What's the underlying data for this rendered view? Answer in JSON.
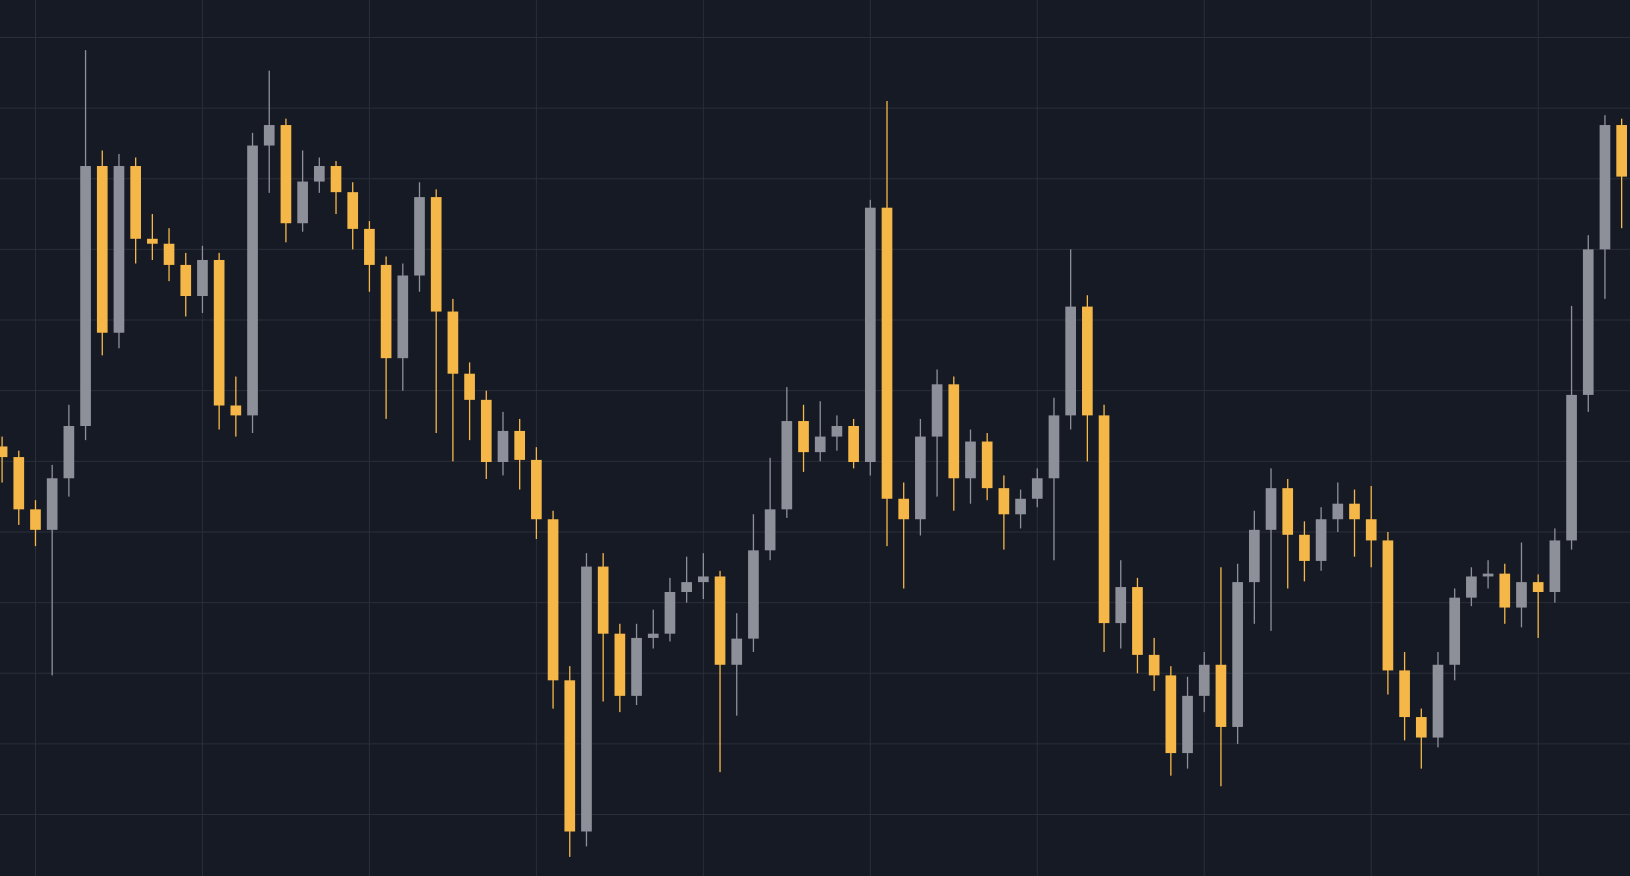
{
  "chart_data": {
    "type": "candlestick",
    "x": [
      0,
      1,
      2,
      3,
      4,
      5,
      6,
      7,
      8,
      9,
      10,
      11,
      12,
      13,
      14,
      15,
      16,
      17,
      18,
      19,
      20,
      21,
      22,
      23,
      24,
      25,
      26,
      27,
      28,
      29,
      30,
      31,
      32,
      33,
      34,
      35,
      36,
      37,
      38,
      39,
      40,
      41,
      42,
      43,
      44,
      45,
      46,
      47,
      48,
      49,
      50,
      51,
      52,
      53,
      54,
      55,
      56,
      57,
      58,
      59,
      60,
      61,
      62,
      63,
      64,
      65,
      66,
      67,
      68,
      69,
      70,
      71,
      72,
      73,
      74,
      75,
      76,
      77,
      78,
      79,
      80,
      81,
      82,
      83,
      84,
      85,
      86,
      87,
      88,
      89,
      90,
      91,
      92,
      93,
      94,
      95,
      96,
      97
    ],
    "open": [
      62.1,
      60.6,
      53.2,
      50.3,
      57.6,
      65.0,
      101.8,
      78.2,
      101.8,
      91.5,
      90.8,
      87.8,
      83.4,
      88.5,
      67.9,
      66.5,
      104.7,
      107.6,
      93.7,
      99.6,
      101.8,
      98.1,
      92.9,
      87.8,
      74.6,
      86.3,
      97.4,
      81.2,
      72.4,
      68.7,
      59.9,
      64.3,
      60.2,
      51.8,
      29.0,
      7.6,
      45.1,
      35.6,
      26.8,
      35.0,
      35.6,
      41.5,
      42.9,
      43.7,
      31.2,
      34.9,
      47.4,
      53.2,
      65.7,
      61.3,
      63.5,
      65.0,
      59.9,
      95.9,
      54.7,
      51.8,
      63.5,
      70.9,
      57.6,
      62.8,
      56.2,
      52.5,
      54.7,
      57.6,
      66.5,
      81.9,
      66.5,
      37.1,
      42.2,
      32.6,
      29.7,
      18.7,
      26.8,
      31.2,
      22.4,
      42.9,
      50.3,
      56.2,
      49.6,
      45.9,
      51.8,
      54.0,
      51.8,
      48.8,
      30.4,
      23.8,
      20.9,
      31.2,
      40.7,
      43.7,
      44.1,
      39.3,
      42.9,
      41.5,
      48.8,
      69.4,
      90.0,
      107.6
    ],
    "high": [
      63.5,
      61.5,
      54.5,
      59.5,
      68.0,
      118.2,
      104.0,
      103.5,
      103.0,
      95.0,
      93.0,
      89.5,
      90.5,
      89.5,
      72.0,
      106.5,
      115.3,
      108.5,
      104.0,
      103.0,
      102.5,
      99.5,
      94.0,
      89.0,
      88.0,
      99.5,
      98.5,
      83.0,
      74.0,
      70.0,
      67.0,
      66.0,
      62.0,
      53.0,
      31.0,
      47.0,
      47.0,
      37.0,
      37.0,
      39.0,
      43.5,
      46.5,
      47.0,
      44.5,
      38.5,
      52.5,
      60.5,
      70.5,
      68.0,
      68.5,
      66.5,
      66.0,
      97.0,
      111.0,
      57.0,
      66.0,
      73.0,
      72.0,
      64.5,
      64.0,
      58.0,
      56.0,
      59.0,
      69.0,
      90.0,
      83.5,
      68.0,
      46.0,
      43.5,
      35.0,
      31.0,
      29.5,
      33.0,
      45.0,
      45.5,
      53.0,
      59.0,
      57.5,
      51.5,
      53.5,
      57.0,
      56.0,
      56.5,
      50.0,
      33.0,
      25.0,
      33.0,
      42.0,
      45.0,
      46.0,
      45.5,
      48.5,
      44.0,
      50.5,
      82.0,
      92.0,
      109.0,
      108.5
    ],
    "low": [
      57.0,
      51.0,
      48.0,
      29.7,
      55.0,
      63.0,
      75.0,
      76.0,
      88.0,
      88.5,
      85.5,
      80.5,
      81.0,
      64.5,
      63.5,
      64.0,
      98.0,
      91.0,
      92.5,
      98.0,
      95.0,
      90.0,
      84.0,
      66.0,
      70.0,
      84.0,
      64.0,
      60.0,
      63.0,
      57.5,
      58.0,
      56.0,
      49.0,
      25.0,
      4.0,
      5.5,
      26.0,
      24.5,
      25.5,
      33.5,
      34.5,
      40.0,
      40.5,
      16.0,
      24.0,
      33.0,
      46.0,
      52.0,
      58.5,
      60.0,
      61.5,
      59.0,
      58.0,
      48.0,
      42.0,
      49.5,
      55.0,
      53.0,
      54.0,
      54.5,
      47.5,
      50.5,
      53.5,
      46.0,
      64.5,
      60.0,
      33.0,
      33.5,
      30.0,
      27.5,
      15.5,
      16.5,
      24.5,
      14.0,
      20.0,
      37.0,
      36.0,
      42.0,
      43.0,
      44.5,
      50.0,
      46.5,
      45.0,
      27.0,
      20.5,
      16.5,
      19.5,
      29.0,
      39.5,
      42.0,
      37.0,
      36.5,
      35.0,
      40.0,
      47.5,
      67.0,
      83.0,
      93.0
    ],
    "close": [
      60.6,
      53.2,
      50.3,
      57.6,
      65.0,
      101.8,
      78.2,
      101.8,
      91.5,
      90.8,
      87.8,
      83.4,
      88.5,
      67.9,
      66.5,
      104.7,
      107.6,
      93.7,
      99.6,
      101.8,
      98.1,
      92.9,
      87.8,
      74.6,
      86.3,
      97.4,
      81.2,
      72.4,
      68.7,
      59.9,
      64.3,
      60.2,
      51.8,
      29.0,
      7.6,
      45.1,
      35.6,
      26.8,
      35.0,
      35.6,
      41.5,
      42.9,
      43.7,
      31.2,
      34.9,
      47.4,
      53.2,
      65.7,
      61.3,
      63.5,
      65.0,
      59.9,
      95.9,
      54.7,
      51.8,
      63.5,
      70.9,
      57.6,
      62.8,
      56.2,
      52.5,
      54.7,
      57.6,
      66.5,
      81.9,
      66.5,
      37.1,
      42.2,
      32.6,
      29.7,
      18.7,
      26.8,
      31.2,
      22.4,
      42.9,
      50.3,
      56.2,
      49.6,
      45.9,
      51.8,
      54.0,
      51.8,
      48.8,
      30.4,
      23.8,
      20.9,
      31.2,
      40.7,
      43.7,
      44.1,
      39.3,
      42.9,
      41.5,
      48.8,
      69.4,
      90.0,
      107.6,
      100.3
    ],
    "up_color": "#8e9099",
    "down_color": "#f5b748",
    "grid_color": "#2a2e39",
    "xlim": [
      -0.125,
      97.5
    ],
    "ylim": [
      1.3,
      125.3
    ],
    "xticks": [
      2,
      12,
      22,
      32,
      42,
      52,
      62,
      72,
      82,
      92
    ],
    "yticks": [
      10,
      20,
      30,
      40,
      50,
      60,
      70,
      80,
      90,
      100,
      110,
      120
    ],
    "grid": true
  }
}
